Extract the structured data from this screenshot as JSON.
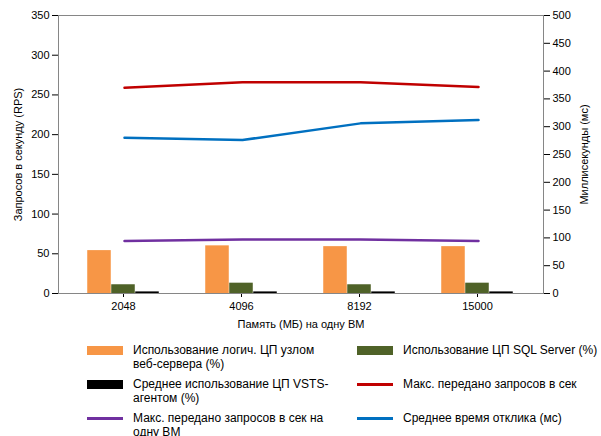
{
  "chart_data": {
    "type": "bar",
    "x_label": "Память (МБ) на одну ВМ",
    "y_label": "Запросов в секунду (RPS)",
    "y2_label": "Миллисекунды (мс)",
    "categories": [
      "2048",
      "4096",
      "8192",
      "15000"
    ],
    "ylim": [
      0,
      350
    ],
    "yticks": [
      0,
      50,
      100,
      150,
      200,
      250,
      300,
      350
    ],
    "y2lim": [
      0,
      500
    ],
    "y2ticks": [
      0,
      50,
      100,
      150,
      200,
      250,
      300,
      350,
      400,
      450,
      500
    ],
    "grid": false,
    "legend": "bottom",
    "series": [
      {
        "name": "Использование логич. ЦП узлом веб-сервера (%)",
        "type": "bar",
        "color": "#f79646",
        "values": [
          54,
          60,
          59,
          59
        ]
      },
      {
        "name": "Использование ЦП SQL Server (%)",
        "type": "bar",
        "color": "#4f6228",
        "values": [
          11,
          13,
          11,
          13
        ]
      },
      {
        "name": "Среднее использование ЦП VSTS-агентом (%)",
        "type": "bar",
        "color": "#000000",
        "values": [
          2,
          2,
          2,
          2
        ]
      },
      {
        "name": "Макс. передано запросов в сек",
        "type": "line",
        "color": "#c00000",
        "values": [
          259,
          266,
          266,
          260
        ]
      },
      {
        "name": "Макс. передано запросов в сек на одну ВМ",
        "type": "line",
        "color": "#7030a0",
        "values": [
          66,
          68,
          68,
          66
        ]
      },
      {
        "name": "Среднее время отклика (мс)",
        "type": "line",
        "color": "#0070c0",
        "axis": "y2",
        "values": [
          280,
          276,
          306,
          312
        ]
      }
    ]
  }
}
